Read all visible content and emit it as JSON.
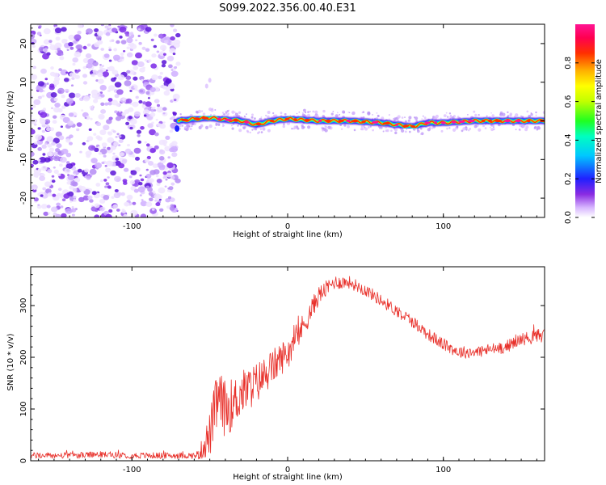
{
  "title": "S099.2022.356.00.40.E31",
  "colors": {
    "snr_line": "#e8302a",
    "ridge_low": "#1f1fff",
    "noise": "#7a28e8"
  },
  "chart_data": [
    {
      "type": "heatmap",
      "title": "S099.2022.356.00.40.E31",
      "xlabel": "Height of straight line (km)",
      "ylabel": "Frequency (Hz)",
      "xlim": [
        -165,
        165
      ],
      "ylim": [
        -25,
        25
      ],
      "xticks": [
        -100,
        0,
        100
      ],
      "yticks": [
        -20,
        -10,
        0,
        10,
        20
      ],
      "ytick_labels": [
        "-20",
        "-10",
        "0",
        "10",
        "20"
      ],
      "xtick_labels": [
        "-100",
        "0",
        "100"
      ],
      "noise_region_x": [
        -165,
        -70
      ],
      "signal_start_x": -70,
      "ridge": {
        "x": [
          -70,
          -60,
          -50,
          -40,
          -30,
          -20,
          -10,
          0,
          20,
          40,
          60,
          80,
          90,
          100,
          120,
          140,
          165
        ],
        "y": [
          0,
          0.5,
          0.8,
          0.3,
          0,
          -1.0,
          0,
          0.5,
          0,
          0,
          -0.5,
          -1.5,
          -0.5,
          -0.5,
          0,
          0,
          0
        ]
      },
      "colorbar": {
        "label": "Normalized spectral amplitude",
        "range": [
          0,
          1
        ],
        "ticks": [
          0.0,
          0.2,
          0.4,
          0.6,
          0.8
        ],
        "tick_labels": [
          "0.0",
          "0.2",
          "0.4",
          "0.6",
          "0.8"
        ],
        "colormap": "white-purple-blue-cyan-green-yellow-orange-red-pink"
      }
    },
    {
      "type": "line",
      "xlabel": "Height of straight line (km)",
      "ylabel": "SNR (10 * v/v)",
      "xlim": [
        -165,
        165
      ],
      "ylim": [
        0,
        375
      ],
      "xticks": [
        -100,
        0,
        100
      ],
      "yticks": [
        0,
        100,
        200,
        300
      ],
      "xtick_labels": [
        "-100",
        "0",
        "100"
      ],
      "ytick_labels": [
        "0",
        "100",
        "200",
        "300"
      ],
      "series": [
        {
          "x": [
            -165,
            -140,
            -120,
            -100,
            -80,
            -60,
            -57,
            -50,
            -45,
            -40,
            -35,
            -30,
            -20,
            -10,
            0,
            10,
            20,
            30,
            40,
            50,
            60,
            70,
            80,
            90,
            100,
            110,
            120,
            130,
            140,
            150,
            160,
            165
          ],
          "y": [
            10,
            10,
            12,
            10,
            10,
            10,
            12,
            50,
            120,
            100,
            110,
            130,
            150,
            180,
            210,
            260,
            320,
            345,
            345,
            330,
            310,
            290,
            270,
            245,
            225,
            210,
            210,
            215,
            220,
            235,
            240,
            245
          ],
          "noise_amplitude": [
            6,
            6,
            6,
            6,
            6,
            6,
            10,
            45,
            60,
            55,
            50,
            45,
            40,
            35,
            30,
            25,
            18,
            14,
            12,
            12,
            12,
            12,
            12,
            12,
            12,
            12,
            12,
            12,
            12,
            12,
            14,
            14
          ]
        }
      ]
    }
  ]
}
